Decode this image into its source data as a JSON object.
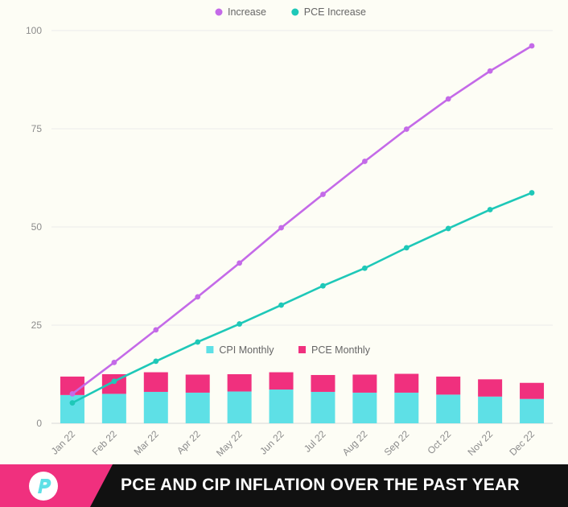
{
  "chart_data": {
    "type": "bar+line",
    "categories": [
      "Jan 22",
      "Feb 22",
      "Mar 22",
      "Apr 22",
      "May 22",
      "Jun 22",
      "Jul 22",
      "Aug 22",
      "Sep 22",
      "Oct 22",
      "Nov 22",
      "Dec 22"
    ],
    "ylim": [
      0,
      100
    ],
    "yticks": [
      0,
      25,
      50,
      75,
      100
    ],
    "grid": true,
    "line_series": [
      {
        "name": "Increase",
        "color": "#c46ae8",
        "values": [
          7.5,
          15.5,
          23.8,
          32.2,
          40.8,
          49.8,
          58.3,
          66.7,
          74.9,
          82.6,
          89.7,
          96.1
        ]
      },
      {
        "name": "PCE Increase",
        "color": "#1ec8b8",
        "values": [
          5.2,
          10.7,
          15.8,
          20.7,
          25.3,
          30.1,
          35.0,
          39.5,
          44.7,
          49.6,
          54.4,
          58.7
        ]
      }
    ],
    "bar_series": [
      {
        "name": "CPI Monthly",
        "color": "#5ee0e6",
        "values": [
          7.2,
          7.5,
          8.0,
          7.8,
          8.1,
          8.6,
          8.0,
          7.8,
          7.8,
          7.3,
          6.8,
          6.2
        ]
      },
      {
        "name": "PCE Monthly",
        "color": "#f0307e",
        "values": [
          4.7,
          5.0,
          5.0,
          4.6,
          4.4,
          4.4,
          4.3,
          4.6,
          4.8,
          4.6,
          4.4,
          4.1
        ]
      }
    ],
    "legend_top": [
      "Increase",
      "PCE Increase"
    ],
    "legend_mid": [
      "CPI Monthly",
      "PCE Monthly"
    ]
  },
  "footer": {
    "title": "PCE AND CIP INFLATION OVER THE PAST YEAR",
    "accent_color": "#f0307e",
    "logo_color": "#5ee0e6",
    "logo_icon": "p-logo-icon"
  }
}
